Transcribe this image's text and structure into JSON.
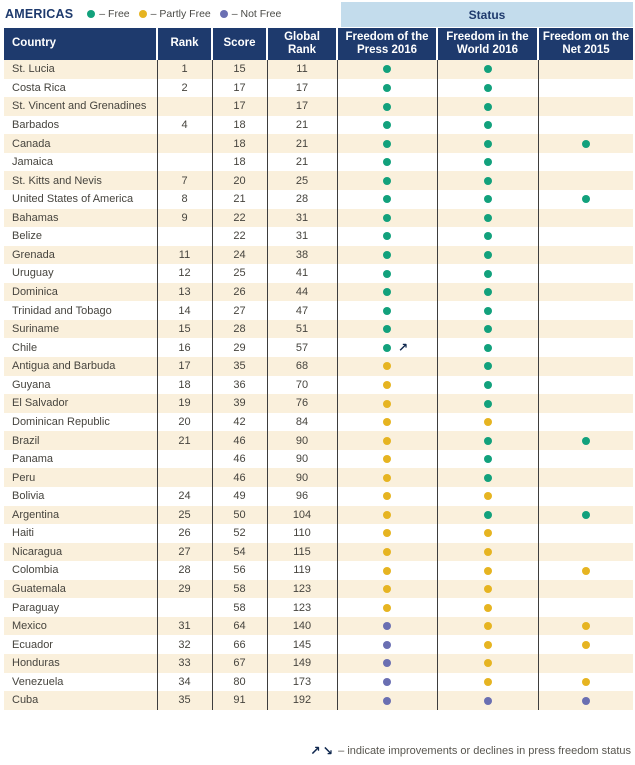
{
  "legend": {
    "region_label": "AMERICAS",
    "items": [
      {
        "label": "– Free",
        "status": "free",
        "color": "#12a17c"
      },
      {
        "label": "– Partly Free",
        "status": "partly-free",
        "color": "#e6b421"
      },
      {
        "label": "– Not Free",
        "status": "not-free",
        "color": "#6a6fb2"
      }
    ]
  },
  "status_band_label": "Status",
  "columns": [
    "Country",
    "Rank",
    "Score",
    "Global Rank",
    "Freedom of the Press 2016",
    "Freedom in the World 2016",
    "Freedom on the Net 2015"
  ],
  "colors": {
    "header_navy": "#1e3a6d",
    "status_band_blue": "#c3dcec",
    "row_stripe_cream": "#faf0dc",
    "free_green": "#12a17c",
    "partly_free_yellow": "#e6b421",
    "not_free_purple": "#6a6fb2"
  },
  "rows": [
    {
      "country": "St. Lucia",
      "rank": "1",
      "score": "15",
      "global_rank": "11",
      "press": "free",
      "press_trend": "",
      "world": "free",
      "net": ""
    },
    {
      "country": "Costa Rica",
      "rank": "2",
      "score": "17",
      "global_rank": "17",
      "press": "free",
      "press_trend": "",
      "world": "free",
      "net": ""
    },
    {
      "country": "St. Vincent and Grenadines",
      "rank": "",
      "score": "17",
      "global_rank": "17",
      "press": "free",
      "press_trend": "",
      "world": "free",
      "net": ""
    },
    {
      "country": "Barbados",
      "rank": "4",
      "score": "18",
      "global_rank": "21",
      "press": "free",
      "press_trend": "",
      "world": "free",
      "net": ""
    },
    {
      "country": "Canada",
      "rank": "",
      "score": "18",
      "global_rank": "21",
      "press": "free",
      "press_trend": "",
      "world": "free",
      "net": "free"
    },
    {
      "country": "Jamaica",
      "rank": "",
      "score": "18",
      "global_rank": "21",
      "press": "free",
      "press_trend": "",
      "world": "free",
      "net": ""
    },
    {
      "country": "St. Kitts and Nevis",
      "rank": "7",
      "score": "20",
      "global_rank": "25",
      "press": "free",
      "press_trend": "",
      "world": "free",
      "net": ""
    },
    {
      "country": "United States of America",
      "rank": "8",
      "score": "21",
      "global_rank": "28",
      "press": "free",
      "press_trend": "",
      "world": "free",
      "net": "free"
    },
    {
      "country": "Bahamas",
      "rank": "9",
      "score": "22",
      "global_rank": "31",
      "press": "free",
      "press_trend": "",
      "world": "free",
      "net": ""
    },
    {
      "country": "Belize",
      "rank": "",
      "score": "22",
      "global_rank": "31",
      "press": "free",
      "press_trend": "",
      "world": "free",
      "net": ""
    },
    {
      "country": "Grenada",
      "rank": "11",
      "score": "24",
      "global_rank": "38",
      "press": "free",
      "press_trend": "",
      "world": "free",
      "net": ""
    },
    {
      "country": "Uruguay",
      "rank": "12",
      "score": "25",
      "global_rank": "41",
      "press": "free",
      "press_trend": "",
      "world": "free",
      "net": ""
    },
    {
      "country": "Dominica",
      "rank": "13",
      "score": "26",
      "global_rank": "44",
      "press": "free",
      "press_trend": "",
      "world": "free",
      "net": ""
    },
    {
      "country": "Trinidad and Tobago",
      "rank": "14",
      "score": "27",
      "global_rank": "47",
      "press": "free",
      "press_trend": "",
      "world": "free",
      "net": ""
    },
    {
      "country": "Suriname",
      "rank": "15",
      "score": "28",
      "global_rank": "51",
      "press": "free",
      "press_trend": "",
      "world": "free",
      "net": ""
    },
    {
      "country": "Chile",
      "rank": "16",
      "score": "29",
      "global_rank": "57",
      "press": "free",
      "press_trend": "up",
      "world": "free",
      "net": ""
    },
    {
      "country": "Antigua and Barbuda",
      "rank": "17",
      "score": "35",
      "global_rank": "68",
      "press": "partly-free",
      "press_trend": "",
      "world": "free",
      "net": ""
    },
    {
      "country": "Guyana",
      "rank": "18",
      "score": "36",
      "global_rank": "70",
      "press": "partly-free",
      "press_trend": "",
      "world": "free",
      "net": ""
    },
    {
      "country": "El Salvador",
      "rank": "19",
      "score": "39",
      "global_rank": "76",
      "press": "partly-free",
      "press_trend": "",
      "world": "free",
      "net": ""
    },
    {
      "country": "Dominican Republic",
      "rank": "20",
      "score": "42",
      "global_rank": "84",
      "press": "partly-free",
      "press_trend": "",
      "world": "partly-free",
      "net": ""
    },
    {
      "country": "Brazil",
      "rank": "21",
      "score": "46",
      "global_rank": "90",
      "press": "partly-free",
      "press_trend": "",
      "world": "free",
      "net": "free"
    },
    {
      "country": "Panama",
      "rank": "",
      "score": "46",
      "global_rank": "90",
      "press": "partly-free",
      "press_trend": "",
      "world": "free",
      "net": ""
    },
    {
      "country": "Peru",
      "rank": "",
      "score": "46",
      "global_rank": "90",
      "press": "partly-free",
      "press_trend": "",
      "world": "free",
      "net": ""
    },
    {
      "country": "Bolivia",
      "rank": "24",
      "score": "49",
      "global_rank": "96",
      "press": "partly-free",
      "press_trend": "",
      "world": "partly-free",
      "net": ""
    },
    {
      "country": "Argentina",
      "rank": "25",
      "score": "50",
      "global_rank": "104",
      "press": "partly-free",
      "press_trend": "",
      "world": "free",
      "net": "free"
    },
    {
      "country": "Haiti",
      "rank": "26",
      "score": "52",
      "global_rank": "110",
      "press": "partly-free",
      "press_trend": "",
      "world": "partly-free",
      "net": ""
    },
    {
      "country": "Nicaragua",
      "rank": "27",
      "score": "54",
      "global_rank": "115",
      "press": "partly-free",
      "press_trend": "",
      "world": "partly-free",
      "net": ""
    },
    {
      "country": "Colombia",
      "rank": "28",
      "score": "56",
      "global_rank": "119",
      "press": "partly-free",
      "press_trend": "",
      "world": "partly-free",
      "net": "partly-free"
    },
    {
      "country": "Guatemala",
      "rank": "29",
      "score": "58",
      "global_rank": "123",
      "press": "partly-free",
      "press_trend": "",
      "world": "partly-free",
      "net": ""
    },
    {
      "country": "Paraguay",
      "rank": "",
      "score": "58",
      "global_rank": "123",
      "press": "partly-free",
      "press_trend": "",
      "world": "partly-free",
      "net": ""
    },
    {
      "country": "Mexico",
      "rank": "31",
      "score": "64",
      "global_rank": "140",
      "press": "not-free",
      "press_trend": "",
      "world": "partly-free",
      "net": "partly-free"
    },
    {
      "country": "Ecuador",
      "rank": "32",
      "score": "66",
      "global_rank": "145",
      "press": "not-free",
      "press_trend": "",
      "world": "partly-free",
      "net": "partly-free"
    },
    {
      "country": "Honduras",
      "rank": "33",
      "score": "67",
      "global_rank": "149",
      "press": "not-free",
      "press_trend": "",
      "world": "partly-free",
      "net": ""
    },
    {
      "country": "Venezuela",
      "rank": "34",
      "score": "80",
      "global_rank": "173",
      "press": "not-free",
      "press_trend": "",
      "world": "partly-free",
      "net": "partly-free"
    },
    {
      "country": "Cuba",
      "rank": "35",
      "score": "91",
      "global_rank": "192",
      "press": "not-free",
      "press_trend": "",
      "world": "not-free",
      "net": "not-free"
    }
  ],
  "footnote": {
    "up_arrow": "↗",
    "down_arrow": "↘",
    "text": "– indicate improvements or declines in press freedom status"
  }
}
